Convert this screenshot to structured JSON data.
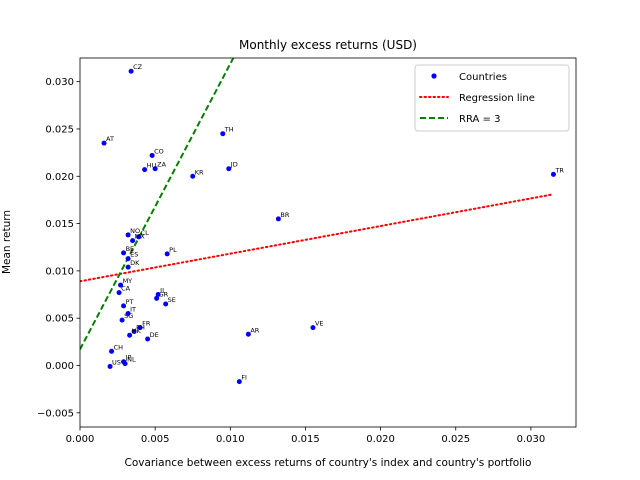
{
  "chart_data": {
    "type": "scatter",
    "title": "Monthly excess returns (USD)",
    "xlabel": "Covariance between excess returns of country's index and country's portfolio",
    "ylabel": "Mean return",
    "xlim": [
      0.0,
      0.033
    ],
    "ylim": [
      -0.0065,
      0.0325
    ],
    "xticks": [
      "0.000",
      "0.005",
      "0.010",
      "0.015",
      "0.020",
      "0.025",
      "0.030"
    ],
    "xtick_values": [
      0,
      0.005,
      0.01,
      0.015,
      0.02,
      0.025,
      0.03
    ],
    "yticks": [
      "−0.005",
      "0.000",
      "0.005",
      "0.010",
      "0.015",
      "0.020",
      "0.025",
      "0.030"
    ],
    "ytick_values": [
      -0.005,
      0,
      0.005,
      0.01,
      0.015,
      0.02,
      0.025,
      0.03
    ],
    "grid": false,
    "legend_position": "top-right",
    "series": [
      {
        "name": "Countries",
        "kind": "points",
        "color": "#0000ff",
        "points": [
          {
            "label": "CZ",
            "x": 0.0034,
            "y": 0.0311
          },
          {
            "label": "AT",
            "x": 0.0016,
            "y": 0.0235
          },
          {
            "label": "TH",
            "x": 0.0095,
            "y": 0.0245
          },
          {
            "label": "CO",
            "x": 0.0048,
            "y": 0.0222
          },
          {
            "label": "HU",
            "x": 0.0043,
            "y": 0.0207
          },
          {
            "label": "ZA",
            "x": 0.005,
            "y": 0.0208
          },
          {
            "label": "JD",
            "x": 0.0099,
            "y": 0.0208
          },
          {
            "label": "KR",
            "x": 0.0075,
            "y": 0.02
          },
          {
            "label": "TR",
            "x": 0.0315,
            "y": 0.0202
          },
          {
            "label": "BR",
            "x": 0.0132,
            "y": 0.0155
          },
          {
            "label": "NO",
            "x": 0.0032,
            "y": 0.0138
          },
          {
            "label": "CL",
            "x": 0.0039,
            "y": 0.0136
          },
          {
            "label": "MX",
            "x": 0.0035,
            "y": 0.0132
          },
          {
            "label": "BE",
            "x": 0.0029,
            "y": 0.0119
          },
          {
            "label": "ES",
            "x": 0.0032,
            "y": 0.0113
          },
          {
            "label": "PL",
            "x": 0.0058,
            "y": 0.0118
          },
          {
            "label": "DK",
            "x": 0.0032,
            "y": 0.0104
          },
          {
            "label": "MY",
            "x": 0.0027,
            "y": 0.0085
          },
          {
            "label": "CA",
            "x": 0.0026,
            "y": 0.0077
          },
          {
            "label": "IL",
            "x": 0.0052,
            "y": 0.0075
          },
          {
            "label": "GR",
            "x": 0.0051,
            "y": 0.0071
          },
          {
            "label": "SE",
            "x": 0.0057,
            "y": 0.0065
          },
          {
            "label": "PT",
            "x": 0.0029,
            "y": 0.0063
          },
          {
            "label": "IT",
            "x": 0.0032,
            "y": 0.0055
          },
          {
            "label": "SG",
            "x": 0.0028,
            "y": 0.0048
          },
          {
            "label": "FR",
            "x": 0.004,
            "y": 0.004
          },
          {
            "label": "PH",
            "x": 0.0036,
            "y": 0.0036
          },
          {
            "label": "HK",
            "x": 0.0033,
            "y": 0.0032
          },
          {
            "label": "DE",
            "x": 0.0045,
            "y": 0.0028
          },
          {
            "label": "AR",
            "x": 0.0112,
            "y": 0.0033
          },
          {
            "label": "VE",
            "x": 0.0155,
            "y": 0.004
          },
          {
            "label": "CH",
            "x": 0.0021,
            "y": 0.0015
          },
          {
            "label": "JP",
            "x": 0.0029,
            "y": 0.0004
          },
          {
            "label": "US",
            "x": 0.002,
            "y": -0.0001
          },
          {
            "label": "NL",
            "x": 0.003,
            "y": 0.0002
          },
          {
            "label": "FI",
            "x": 0.0106,
            "y": -0.0017
          }
        ]
      },
      {
        "name": "Regression line",
        "kind": "line",
        "color": "#ff0000",
        "style": "dotted",
        "x": [
          0.0,
          0.0315
        ],
        "y": [
          0.0089,
          0.0181
        ]
      },
      {
        "name": "RRA = 3",
        "kind": "line",
        "color": "#008000",
        "style": "dashed",
        "x": [
          0.0,
          0.0102
        ],
        "y": [
          0.0017,
          0.0325
        ]
      }
    ]
  }
}
